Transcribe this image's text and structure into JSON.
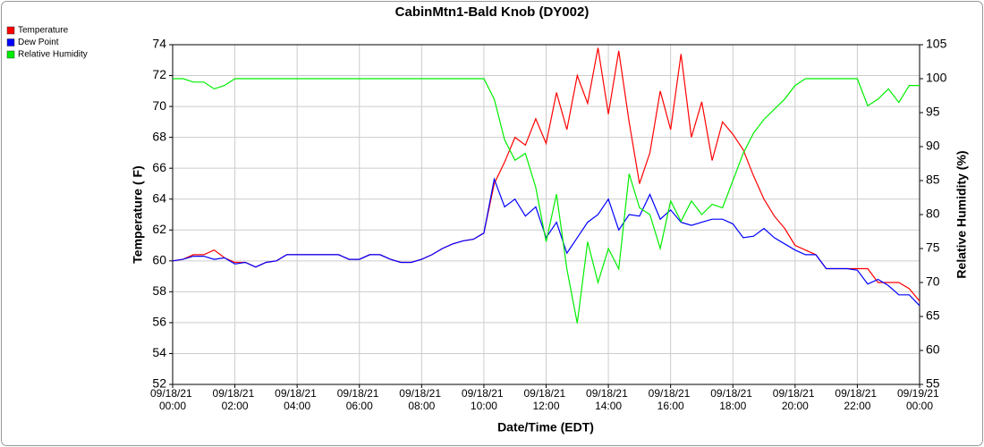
{
  "chart_data": {
    "type": "line",
    "title": "CabinMtn1-Bald Knob (DY002)",
    "xlabel": "Date/Time (EDT)",
    "ylabel": "Temperature ( F)",
    "y2label": "Relative Humidity (%)",
    "legend": "top-left",
    "grid": true,
    "x": [
      0,
      20,
      40,
      60,
      80,
      100,
      120,
      140,
      160,
      180,
      200,
      220,
      240,
      260,
      280,
      300,
      320,
      340,
      360,
      380,
      400,
      420,
      440,
      460,
      480,
      500,
      520,
      540,
      560,
      580,
      600,
      620,
      640,
      660,
      680,
      700,
      720,
      740,
      760,
      780,
      800,
      820,
      840,
      860,
      880,
      900,
      920,
      940,
      960,
      980,
      1000,
      1020,
      1040,
      1060,
      1080,
      1100,
      1120,
      1140,
      1160,
      1180,
      1200,
      1220,
      1240,
      1260,
      1280,
      1300,
      1320,
      1340,
      1360,
      1380,
      1400,
      1420,
      1440
    ],
    "xlim": [
      0,
      1440
    ],
    "xticks": [
      {
        "value": 0,
        "label": "09/18/21 00:00"
      },
      {
        "value": 120,
        "label": "09/18/21 02:00"
      },
      {
        "value": 240,
        "label": "09/18/21 04:00"
      },
      {
        "value": 360,
        "label": "09/18/21 06:00"
      },
      {
        "value": 480,
        "label": "09/18/21 08:00"
      },
      {
        "value": 600,
        "label": "09/18/21 10:00"
      },
      {
        "value": 720,
        "label": "09/18/21 12:00"
      },
      {
        "value": 840,
        "label": "09/18/21 14:00"
      },
      {
        "value": 960,
        "label": "09/18/21 16:00"
      },
      {
        "value": 1080,
        "label": "09/18/21 18:00"
      },
      {
        "value": 1200,
        "label": "09/18/21 20:00"
      },
      {
        "value": 1320,
        "label": "09/18/21 22:00"
      },
      {
        "value": 1440,
        "label": "09/19/21 00:00"
      }
    ],
    "ylim": [
      52,
      74
    ],
    "yticks": [
      52,
      54,
      56,
      58,
      60,
      62,
      64,
      66,
      68,
      70,
      72,
      74
    ],
    "y2lim": [
      55,
      105
    ],
    "y2ticks": [
      55,
      60,
      65,
      70,
      75,
      80,
      85,
      90,
      95,
      100,
      105
    ],
    "series": [
      {
        "name": "Temperature",
        "color": "#ff0000",
        "values": [
          60.0,
          60.1,
          60.4,
          60.4,
          60.7,
          60.2,
          59.9,
          59.9,
          59.6,
          59.9,
          60.0,
          60.4,
          60.4,
          60.4,
          60.4,
          60.4,
          60.4,
          60.1,
          60.1,
          60.4,
          60.4,
          60.1,
          59.9,
          59.9,
          60.1,
          60.4,
          60.8,
          61.1,
          61.3,
          61.4,
          61.8,
          65.0,
          66.4,
          68.0,
          67.5,
          69.2,
          67.6,
          70.9,
          68.5,
          72.0,
          70.2,
          73.8,
          69.5,
          73.6,
          69.0,
          65.0,
          67.0,
          71.0,
          68.5,
          73.4,
          68.0,
          70.3,
          66.5,
          69.0,
          68.2,
          67.2,
          65.5,
          64.0,
          62.9,
          62.1,
          61.0,
          60.7,
          60.4,
          59.5,
          59.5,
          59.5,
          59.5,
          59.5,
          58.6,
          58.6,
          58.6,
          58.2,
          57.4
        ]
      },
      {
        "name": "Dew Point",
        "color": "#0000ff",
        "values": [
          60.0,
          60.1,
          60.3,
          60.3,
          60.1,
          60.2,
          59.8,
          59.9,
          59.6,
          59.9,
          60.0,
          60.4,
          60.4,
          60.4,
          60.4,
          60.4,
          60.4,
          60.1,
          60.1,
          60.4,
          60.4,
          60.1,
          59.9,
          59.9,
          60.1,
          60.4,
          60.8,
          61.1,
          61.3,
          61.4,
          61.8,
          65.3,
          63.5,
          64.0,
          62.9,
          63.5,
          61.5,
          62.5,
          60.5,
          61.5,
          62.5,
          63.0,
          64.0,
          62.0,
          63.0,
          62.9,
          64.3,
          62.7,
          63.3,
          62.5,
          62.3,
          62.5,
          62.7,
          62.7,
          62.4,
          61.5,
          61.6,
          62.1,
          61.5,
          61.1,
          60.7,
          60.4,
          60.4,
          59.5,
          59.5,
          59.5,
          59.4,
          58.5,
          58.8,
          58.4,
          57.8,
          57.8,
          57.1
        ]
      },
      {
        "name": "Relative Humidity",
        "color": "#00ee00",
        "axis": "y2",
        "values": [
          100,
          100,
          99.5,
          99.5,
          98.5,
          99,
          100,
          100,
          100,
          100,
          100,
          100,
          100,
          100,
          100,
          100,
          100,
          100,
          100,
          100,
          100,
          100,
          100,
          100,
          100,
          100,
          100,
          100,
          100,
          100,
          100,
          97,
          91,
          88,
          89,
          84,
          76,
          83,
          72,
          64,
          76,
          70,
          75,
          72,
          86,
          81,
          80,
          75,
          82,
          79,
          82,
          80,
          81.5,
          81,
          85,
          89,
          92,
          94,
          95.5,
          97,
          99,
          100,
          100,
          100,
          100,
          100,
          100,
          96,
          97,
          98.5,
          96.5,
          99,
          99
        ]
      }
    ]
  }
}
